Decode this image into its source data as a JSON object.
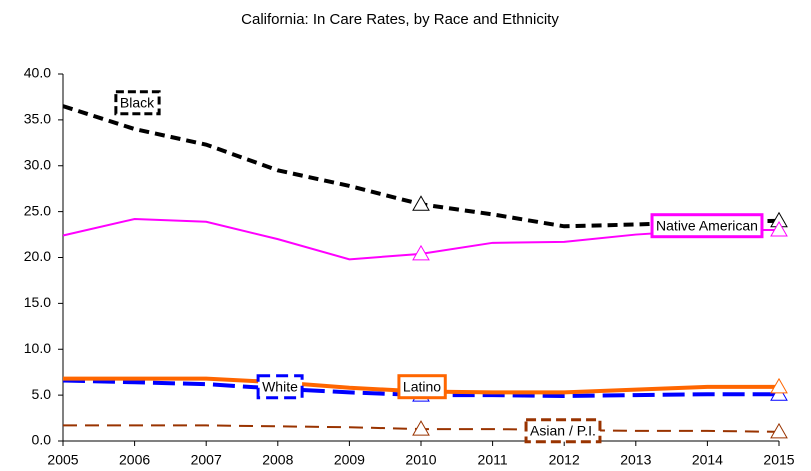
{
  "chart_data": {
    "type": "line",
    "title": "California: In Care Rates, by Race and Ethnicity",
    "x": [
      2005,
      2006,
      2007,
      2008,
      2009,
      2010,
      2011,
      2012,
      2013,
      2014,
      2015
    ],
    "xlim": [
      2005,
      2015
    ],
    "xticks": [
      2005,
      2006,
      2007,
      2008,
      2009,
      2010,
      2011,
      2012,
      2013,
      2014,
      2015
    ],
    "ylim": [
      0,
      40
    ],
    "yticks": [
      {
        "value": 0,
        "label": "0.0"
      },
      {
        "value": 5,
        "label": "5.0"
      },
      {
        "value": 10,
        "label": "10.0"
      },
      {
        "value": 15,
        "label": "15.0"
      },
      {
        "value": 20,
        "label": "20.0"
      },
      {
        "value": 25,
        "label": "25.0"
      },
      {
        "value": 30,
        "label": "30.0"
      },
      {
        "value": 35,
        "label": "35.0"
      },
      {
        "value": 40,
        "label": "40.0"
      }
    ],
    "grid": false,
    "marker": "triangle",
    "marker_x": [
      2010,
      2015
    ],
    "series": [
      {
        "name": "Black",
        "color": "#000000",
        "values": [
          36.5,
          34.0,
          32.3,
          29.5,
          27.8,
          25.8,
          24.7,
          23.4,
          23.6,
          23.9,
          24.0
        ]
      },
      {
        "name": "Native American",
        "color": "#ff00ff",
        "values": [
          22.4,
          24.2,
          23.9,
          22.0,
          19.8,
          20.4,
          21.6,
          21.7,
          22.5,
          23.0,
          23.0
        ]
      },
      {
        "name": "White",
        "color": "#0000ff",
        "values": [
          6.6,
          6.4,
          6.2,
          5.7,
          5.3,
          5.0,
          5.0,
          4.9,
          5.0,
          5.1,
          5.1
        ]
      },
      {
        "name": "Latino",
        "color": "#ff6600",
        "values": [
          6.8,
          6.8,
          6.8,
          6.4,
          5.8,
          5.4,
          5.3,
          5.3,
          5.6,
          5.9,
          5.9
        ]
      },
      {
        "name": "Asian / P.I.",
        "color": "#993300",
        "values": [
          1.7,
          1.7,
          1.7,
          1.6,
          1.5,
          1.3,
          1.3,
          1.2,
          1.1,
          1.1,
          1.0
        ]
      }
    ]
  }
}
